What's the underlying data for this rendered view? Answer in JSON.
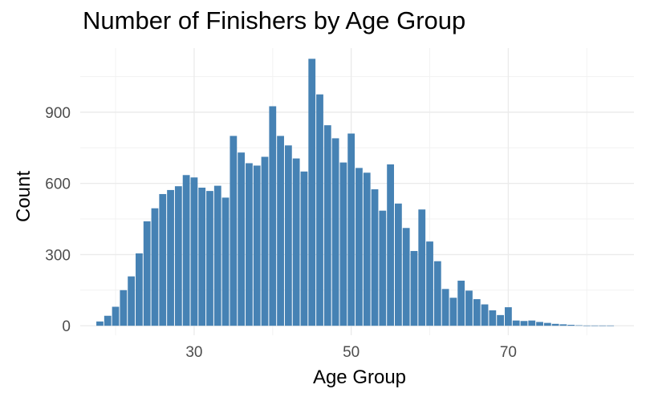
{
  "chart_data": {
    "type": "bar",
    "title": "Number of Finishers by Age Group",
    "xlabel": "Age Group",
    "ylabel": "Count",
    "x_ticks": [
      30,
      50,
      70
    ],
    "y_ticks": [
      0,
      300,
      600,
      900
    ],
    "xlim": [
      15.5,
      86
    ],
    "ylim": [
      -40,
      1170
    ],
    "grid": true,
    "bar_color": "#4682B4",
    "bars": [
      {
        "x": 18,
        "y": 18
      },
      {
        "x": 19,
        "y": 42
      },
      {
        "x": 20,
        "y": 80
      },
      {
        "x": 21,
        "y": 150
      },
      {
        "x": 22,
        "y": 208
      },
      {
        "x": 23,
        "y": 305
      },
      {
        "x": 24,
        "y": 440
      },
      {
        "x": 25,
        "y": 495
      },
      {
        "x": 26,
        "y": 555
      },
      {
        "x": 27,
        "y": 572
      },
      {
        "x": 28,
        "y": 588
      },
      {
        "x": 29,
        "y": 635
      },
      {
        "x": 30,
        "y": 625
      },
      {
        "x": 31,
        "y": 582
      },
      {
        "x": 32,
        "y": 568
      },
      {
        "x": 33,
        "y": 590
      },
      {
        "x": 34,
        "y": 540
      },
      {
        "x": 35,
        "y": 800
      },
      {
        "x": 36,
        "y": 730
      },
      {
        "x": 37,
        "y": 685
      },
      {
        "x": 38,
        "y": 675
      },
      {
        "x": 39,
        "y": 712
      },
      {
        "x": 40,
        "y": 925
      },
      {
        "x": 41,
        "y": 800
      },
      {
        "x": 42,
        "y": 760
      },
      {
        "x": 43,
        "y": 705
      },
      {
        "x": 44,
        "y": 650
      },
      {
        "x": 45,
        "y": 1125
      },
      {
        "x": 46,
        "y": 975
      },
      {
        "x": 47,
        "y": 845
      },
      {
        "x": 48,
        "y": 790
      },
      {
        "x": 49,
        "y": 688
      },
      {
        "x": 50,
        "y": 810
      },
      {
        "x": 51,
        "y": 665
      },
      {
        "x": 52,
        "y": 645
      },
      {
        "x": 53,
        "y": 575
      },
      {
        "x": 54,
        "y": 485
      },
      {
        "x": 55,
        "y": 680
      },
      {
        "x": 56,
        "y": 515
      },
      {
        "x": 57,
        "y": 412
      },
      {
        "x": 58,
        "y": 315
      },
      {
        "x": 59,
        "y": 490
      },
      {
        "x": 60,
        "y": 355
      },
      {
        "x": 61,
        "y": 272
      },
      {
        "x": 62,
        "y": 155
      },
      {
        "x": 63,
        "y": 118
      },
      {
        "x": 64,
        "y": 190
      },
      {
        "x": 65,
        "y": 148
      },
      {
        "x": 66,
        "y": 112
      },
      {
        "x": 67,
        "y": 90
      },
      {
        "x": 68,
        "y": 65
      },
      {
        "x": 69,
        "y": 45
      },
      {
        "x": 70,
        "y": 78
      },
      {
        "x": 71,
        "y": 22
      },
      {
        "x": 72,
        "y": 20
      },
      {
        "x": 73,
        "y": 22
      },
      {
        "x": 74,
        "y": 16
      },
      {
        "x": 75,
        "y": 12
      },
      {
        "x": 76,
        "y": 8
      },
      {
        "x": 77,
        "y": 6
      },
      {
        "x": 78,
        "y": 4
      },
      {
        "x": 79,
        "y": 2
      },
      {
        "x": 80,
        "y": 1
      },
      {
        "x": 81,
        "y": 1
      },
      {
        "x": 82,
        "y": 1
      },
      {
        "x": 83,
        "y": 1
      }
    ]
  }
}
